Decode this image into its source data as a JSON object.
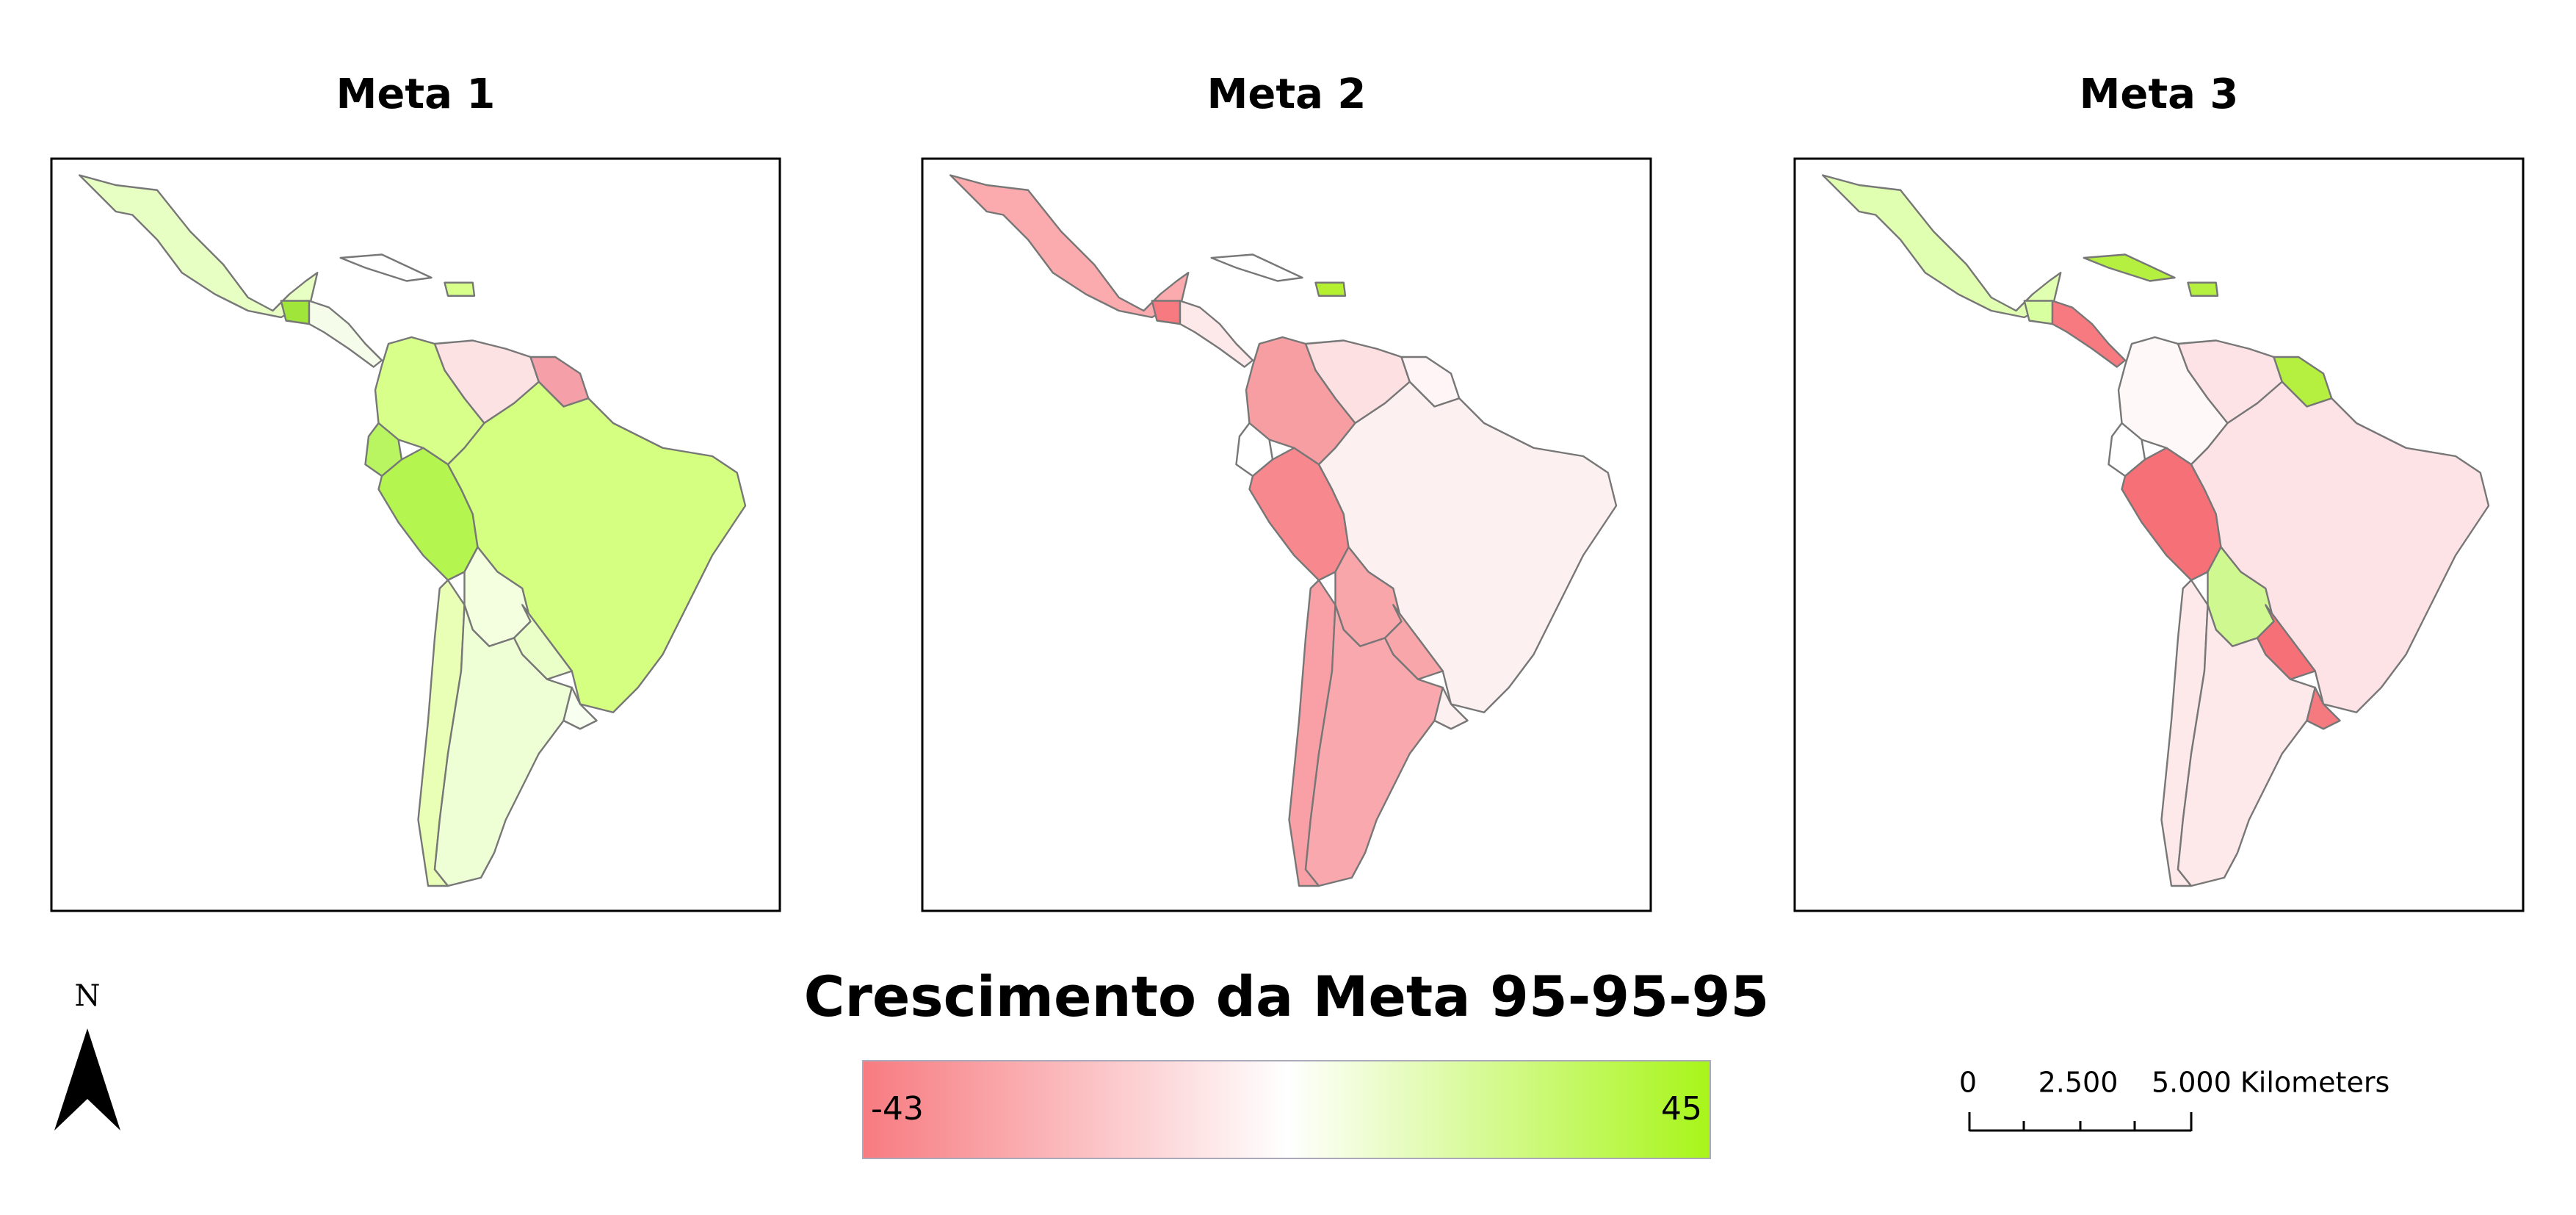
{
  "panels": [
    {
      "title": "Meta 1"
    },
    {
      "title": "Meta 2"
    },
    {
      "title": "Meta 3"
    }
  ],
  "legend": {
    "title": "Crescimento da Meta 95-95-95",
    "min": -43,
    "max": 45
  },
  "north_arrow": {
    "label": "N"
  },
  "scale_bar": {
    "labels": [
      "0",
      "2.500",
      "5.000 Kilometers"
    ]
  }
}
